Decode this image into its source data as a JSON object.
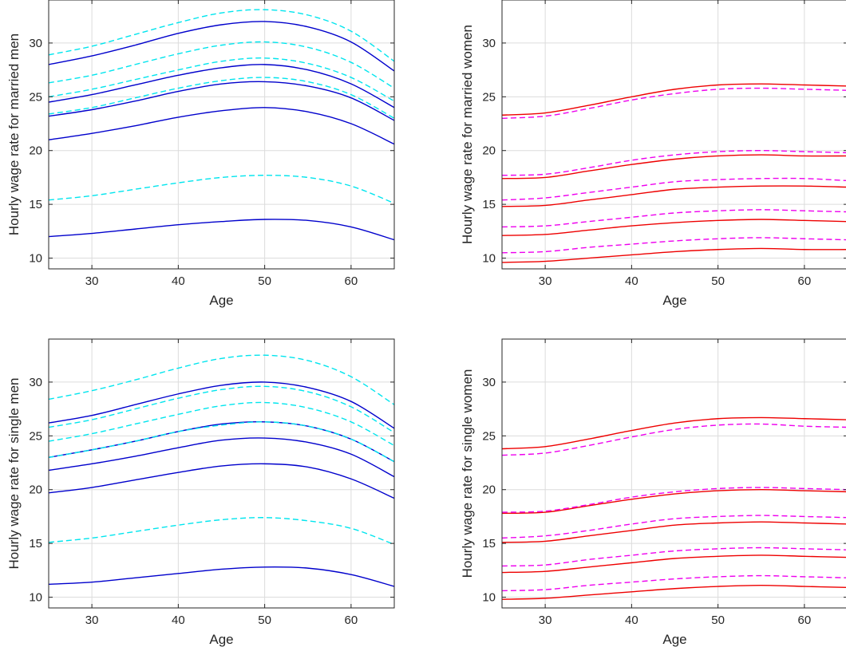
{
  "chart_data": [
    {
      "type": "line",
      "xlabel": "Age",
      "ylabel": "Hourly wage rate for married men",
      "xlim": [
        25,
        65
      ],
      "ylim": [
        9,
        34
      ],
      "xticks": [
        30,
        40,
        50,
        60
      ],
      "yticks": [
        10,
        15,
        20,
        25,
        30
      ],
      "grid": true,
      "x": [
        25,
        30,
        35,
        40,
        45,
        50,
        55,
        60,
        65
      ],
      "series": [
        {
          "style": "solid",
          "color": "#0000cc",
          "values": [
            12.0,
            12.3,
            12.7,
            13.1,
            13.4,
            13.6,
            13.5,
            12.9,
            11.7
          ]
        },
        {
          "style": "solid",
          "color": "#0000cc",
          "values": [
            21.0,
            21.6,
            22.3,
            23.1,
            23.7,
            24.0,
            23.6,
            22.5,
            20.6
          ]
        },
        {
          "style": "solid",
          "color": "#0000cc",
          "values": [
            23.2,
            23.8,
            24.6,
            25.5,
            26.2,
            26.4,
            26.0,
            24.9,
            22.8
          ]
        },
        {
          "style": "solid",
          "color": "#0000cc",
          "values": [
            24.5,
            25.2,
            26.1,
            27.0,
            27.7,
            28.0,
            27.5,
            26.2,
            24.0
          ]
        },
        {
          "style": "solid",
          "color": "#0000cc",
          "values": [
            28.0,
            28.8,
            29.8,
            30.9,
            31.7,
            32.0,
            31.5,
            30.1,
            27.4
          ]
        },
        {
          "style": "dashed",
          "color": "#00e5ee",
          "values": [
            15.4,
            15.8,
            16.4,
            17.0,
            17.5,
            17.7,
            17.5,
            16.7,
            15.1
          ]
        },
        {
          "style": "dashed",
          "color": "#00e5ee",
          "values": [
            23.4,
            24.0,
            24.9,
            25.8,
            26.5,
            26.8,
            26.4,
            25.2,
            23.0
          ]
        },
        {
          "style": "dashed",
          "color": "#00e5ee",
          "values": [
            25.0,
            25.7,
            26.6,
            27.5,
            28.3,
            28.6,
            28.1,
            26.8,
            24.6
          ]
        },
        {
          "style": "dashed",
          "color": "#00e5ee",
          "values": [
            26.3,
            27.0,
            28.0,
            29.0,
            29.8,
            30.1,
            29.6,
            28.2,
            25.8
          ]
        },
        {
          "style": "dashed",
          "color": "#00e5ee",
          "values": [
            28.9,
            29.7,
            30.8,
            31.9,
            32.8,
            33.1,
            32.6,
            31.1,
            28.3
          ]
        }
      ]
    },
    {
      "type": "line",
      "xlabel": "Age",
      "ylabel": "Hourly wage rate for married women",
      "xlim": [
        25,
        65
      ],
      "ylim": [
        9,
        34
      ],
      "xticks": [
        30,
        40,
        50,
        60
      ],
      "yticks": [
        10,
        15,
        20,
        25,
        30
      ],
      "grid": true,
      "x": [
        25,
        30,
        35,
        40,
        45,
        50,
        55,
        60,
        65
      ],
      "series": [
        {
          "style": "solid",
          "color": "#ee0000",
          "values": [
            9.6,
            9.7,
            10.0,
            10.3,
            10.6,
            10.8,
            10.9,
            10.8,
            10.8
          ]
        },
        {
          "style": "solid",
          "color": "#ee0000",
          "values": [
            12.1,
            12.2,
            12.6,
            13.0,
            13.3,
            13.5,
            13.6,
            13.5,
            13.4
          ]
        },
        {
          "style": "solid",
          "color": "#ee0000",
          "values": [
            14.8,
            14.9,
            15.4,
            15.9,
            16.4,
            16.6,
            16.7,
            16.7,
            16.6
          ]
        },
        {
          "style": "solid",
          "color": "#ee0000",
          "values": [
            17.4,
            17.5,
            18.1,
            18.7,
            19.2,
            19.5,
            19.6,
            19.5,
            19.5
          ]
        },
        {
          "style": "solid",
          "color": "#ee0000",
          "values": [
            23.3,
            23.5,
            24.2,
            25.0,
            25.7,
            26.1,
            26.2,
            26.1,
            26.0
          ]
        },
        {
          "style": "dashed",
          "color": "#ee00ee",
          "values": [
            10.5,
            10.6,
            11.0,
            11.3,
            11.6,
            11.8,
            11.9,
            11.8,
            11.7
          ]
        },
        {
          "style": "dashed",
          "color": "#ee00ee",
          "values": [
            12.9,
            13.0,
            13.4,
            13.8,
            14.2,
            14.4,
            14.5,
            14.4,
            14.3
          ]
        },
        {
          "style": "dashed",
          "color": "#ee00ee",
          "values": [
            15.4,
            15.6,
            16.1,
            16.6,
            17.1,
            17.3,
            17.4,
            17.4,
            17.2
          ]
        },
        {
          "style": "dashed",
          "color": "#ee00ee",
          "values": [
            17.7,
            17.8,
            18.4,
            19.1,
            19.6,
            19.9,
            20.0,
            19.9,
            19.8
          ]
        },
        {
          "style": "dashed",
          "color": "#ee00ee",
          "values": [
            23.0,
            23.2,
            23.9,
            24.7,
            25.3,
            25.7,
            25.8,
            25.7,
            25.6
          ]
        }
      ]
    },
    {
      "type": "line",
      "xlabel": "Age",
      "ylabel": "Hourly wage rate for single men",
      "xlim": [
        25,
        65
      ],
      "ylim": [
        9,
        34
      ],
      "xticks": [
        30,
        40,
        50,
        60
      ],
      "yticks": [
        10,
        15,
        20,
        25,
        30
      ],
      "grid": true,
      "x": [
        25,
        30,
        35,
        40,
        45,
        50,
        55,
        60,
        65
      ],
      "series": [
        {
          "style": "solid",
          "color": "#0000cc",
          "values": [
            11.2,
            11.4,
            11.8,
            12.2,
            12.6,
            12.8,
            12.7,
            12.1,
            11.0
          ]
        },
        {
          "style": "solid",
          "color": "#0000cc",
          "values": [
            19.7,
            20.2,
            20.9,
            21.6,
            22.2,
            22.4,
            22.1,
            21.0,
            19.2
          ]
        },
        {
          "style": "solid",
          "color": "#0000cc",
          "values": [
            21.8,
            22.4,
            23.1,
            23.9,
            24.6,
            24.8,
            24.4,
            23.3,
            21.2
          ]
        },
        {
          "style": "solid",
          "color": "#0000cc",
          "values": [
            23.0,
            23.7,
            24.5,
            25.4,
            26.1,
            26.3,
            25.9,
            24.7,
            22.6
          ]
        },
        {
          "style": "solid",
          "color": "#0000cc",
          "values": [
            26.2,
            26.9,
            27.9,
            28.9,
            29.7,
            30.0,
            29.5,
            28.2,
            25.7
          ]
        },
        {
          "style": "dashed",
          "color": "#00e5ee",
          "values": [
            15.1,
            15.5,
            16.1,
            16.7,
            17.2,
            17.4,
            17.1,
            16.4,
            14.9
          ]
        },
        {
          "style": "dashed",
          "color": "#00e5ee",
          "values": [
            23.0,
            23.7,
            24.5,
            25.4,
            26.0,
            26.3,
            25.9,
            24.7,
            22.6
          ]
        },
        {
          "style": "dashed",
          "color": "#00e5ee",
          "values": [
            24.5,
            25.2,
            26.1,
            27.0,
            27.8,
            28.1,
            27.6,
            26.3,
            24.1
          ]
        },
        {
          "style": "dashed",
          "color": "#00e5ee",
          "values": [
            25.8,
            26.5,
            27.5,
            28.5,
            29.3,
            29.6,
            29.1,
            27.7,
            25.3
          ]
        },
        {
          "style": "dashed",
          "color": "#00e5ee",
          "values": [
            28.4,
            29.2,
            30.2,
            31.3,
            32.2,
            32.5,
            32.0,
            30.5,
            27.9
          ]
        }
      ]
    },
    {
      "type": "line",
      "xlabel": "Age",
      "ylabel": "Hourly wage rate for single women",
      "xlim": [
        25,
        65
      ],
      "ylim": [
        9,
        34
      ],
      "xticks": [
        30,
        40,
        50,
        60
      ],
      "yticks": [
        10,
        15,
        20,
        25,
        30
      ],
      "grid": true,
      "x": [
        25,
        30,
        35,
        40,
        45,
        50,
        55,
        60,
        65
      ],
      "series": [
        {
          "style": "solid",
          "color": "#ee0000",
          "values": [
            9.8,
            9.9,
            10.2,
            10.5,
            10.8,
            11.0,
            11.1,
            11.0,
            10.9
          ]
        },
        {
          "style": "solid",
          "color": "#ee0000",
          "values": [
            12.3,
            12.4,
            12.8,
            13.2,
            13.6,
            13.8,
            13.9,
            13.8,
            13.7
          ]
        },
        {
          "style": "solid",
          "color": "#ee0000",
          "values": [
            15.1,
            15.2,
            15.7,
            16.2,
            16.7,
            16.9,
            17.0,
            16.9,
            16.8
          ]
        },
        {
          "style": "solid",
          "color": "#ee0000",
          "values": [
            17.8,
            17.9,
            18.5,
            19.1,
            19.6,
            19.9,
            20.0,
            19.9,
            19.8
          ]
        },
        {
          "style": "solid",
          "color": "#ee0000",
          "values": [
            23.8,
            24.0,
            24.7,
            25.5,
            26.2,
            26.6,
            26.7,
            26.6,
            26.5
          ]
        },
        {
          "style": "dashed",
          "color": "#ee00ee",
          "values": [
            10.6,
            10.7,
            11.1,
            11.4,
            11.7,
            11.9,
            12.0,
            11.9,
            11.8
          ]
        },
        {
          "style": "dashed",
          "color": "#ee00ee",
          "values": [
            12.9,
            13.0,
            13.5,
            13.9,
            14.3,
            14.5,
            14.6,
            14.5,
            14.4
          ]
        },
        {
          "style": "dashed",
          "color": "#ee00ee",
          "values": [
            15.5,
            15.7,
            16.2,
            16.8,
            17.3,
            17.5,
            17.6,
            17.5,
            17.4
          ]
        },
        {
          "style": "dashed",
          "color": "#ee00ee",
          "values": [
            17.9,
            18.0,
            18.6,
            19.3,
            19.8,
            20.1,
            20.2,
            20.1,
            20.0
          ]
        },
        {
          "style": "dashed",
          "color": "#ee00ee",
          "values": [
            23.2,
            23.4,
            24.1,
            24.9,
            25.6,
            26.0,
            26.1,
            25.9,
            25.8
          ]
        }
      ]
    }
  ]
}
